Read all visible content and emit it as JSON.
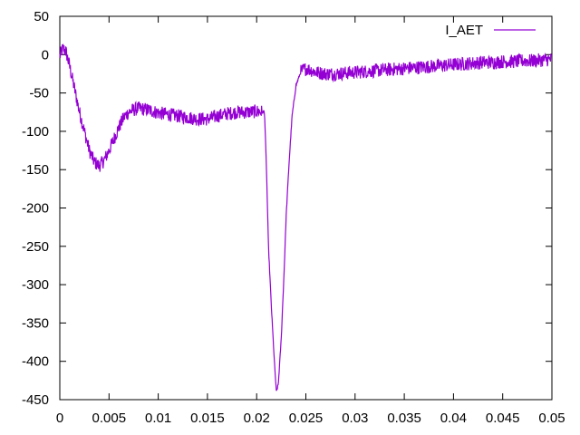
{
  "chart_data": {
    "type": "line",
    "title": "",
    "xlabel": "",
    "ylabel": "",
    "xlim": [
      0,
      0.05
    ],
    "ylim": [
      -450,
      50
    ],
    "x_ticks": [
      0,
      0.005,
      0.01,
      0.015,
      0.02,
      0.025,
      0.03,
      0.035,
      0.04,
      0.045,
      0.05
    ],
    "x_tick_labels": [
      "0",
      "0.005",
      "0.01",
      "0.015",
      "0.02",
      "0.025",
      "0.03",
      "0.035",
      "0.04",
      "0.045",
      "0.05"
    ],
    "y_ticks": [
      50,
      0,
      -50,
      -100,
      -150,
      -200,
      -250,
      -300,
      -350,
      -400,
      -450
    ],
    "y_tick_labels": [
      "50",
      "0",
      "-50",
      "-100",
      "-150",
      "-200",
      "-250",
      "-300",
      "-350",
      "-400",
      "-450"
    ],
    "grid": false,
    "legend_position": "top-right",
    "series": [
      {
        "name": "I_AET",
        "color": "#9400d3",
        "x": [
          0,
          0.0003,
          0.0006,
          0.001,
          0.0015,
          0.002,
          0.0025,
          0.003,
          0.0035,
          0.004,
          0.0045,
          0.005,
          0.0055,
          0.006,
          0.0065,
          0.007,
          0.0075,
          0.008,
          0.009,
          0.01,
          0.011,
          0.012,
          0.013,
          0.014,
          0.015,
          0.016,
          0.017,
          0.018,
          0.019,
          0.02,
          0.0208,
          0.021,
          0.0212,
          0.0215,
          0.0218,
          0.022,
          0.0222,
          0.0225,
          0.0228,
          0.023,
          0.0233,
          0.0236,
          0.024,
          0.0245,
          0.025,
          0.0255,
          0.026,
          0.027,
          0.028,
          0.029,
          0.03,
          0.031,
          0.032,
          0.033,
          0.034,
          0.035,
          0.036,
          0.037,
          0.038,
          0.039,
          0.04,
          0.041,
          0.042,
          0.043,
          0.044,
          0.045,
          0.046,
          0.047,
          0.048,
          0.049,
          0.05
        ],
        "y": [
          -2,
          8,
          5,
          -15,
          -45,
          -75,
          -100,
          -125,
          -140,
          -145,
          -138,
          -125,
          -110,
          -95,
          -82,
          -75,
          -72,
          -70,
          -72,
          -76,
          -78,
          -80,
          -82,
          -84,
          -84,
          -80,
          -77,
          -75,
          -75,
          -74,
          -75,
          -150,
          -250,
          -330,
          -400,
          -440,
          -430,
          -370,
          -280,
          -210,
          -140,
          -80,
          -40,
          -22,
          -18,
          -20,
          -23,
          -25,
          -25,
          -24,
          -23,
          -22,
          -21,
          -20,
          -19,
          -18,
          -17,
          -16,
          -15,
          -14,
          -13,
          -12,
          -11,
          -10,
          -10,
          -9,
          -9,
          -8,
          -8,
          -7,
          -6
        ]
      }
    ]
  }
}
